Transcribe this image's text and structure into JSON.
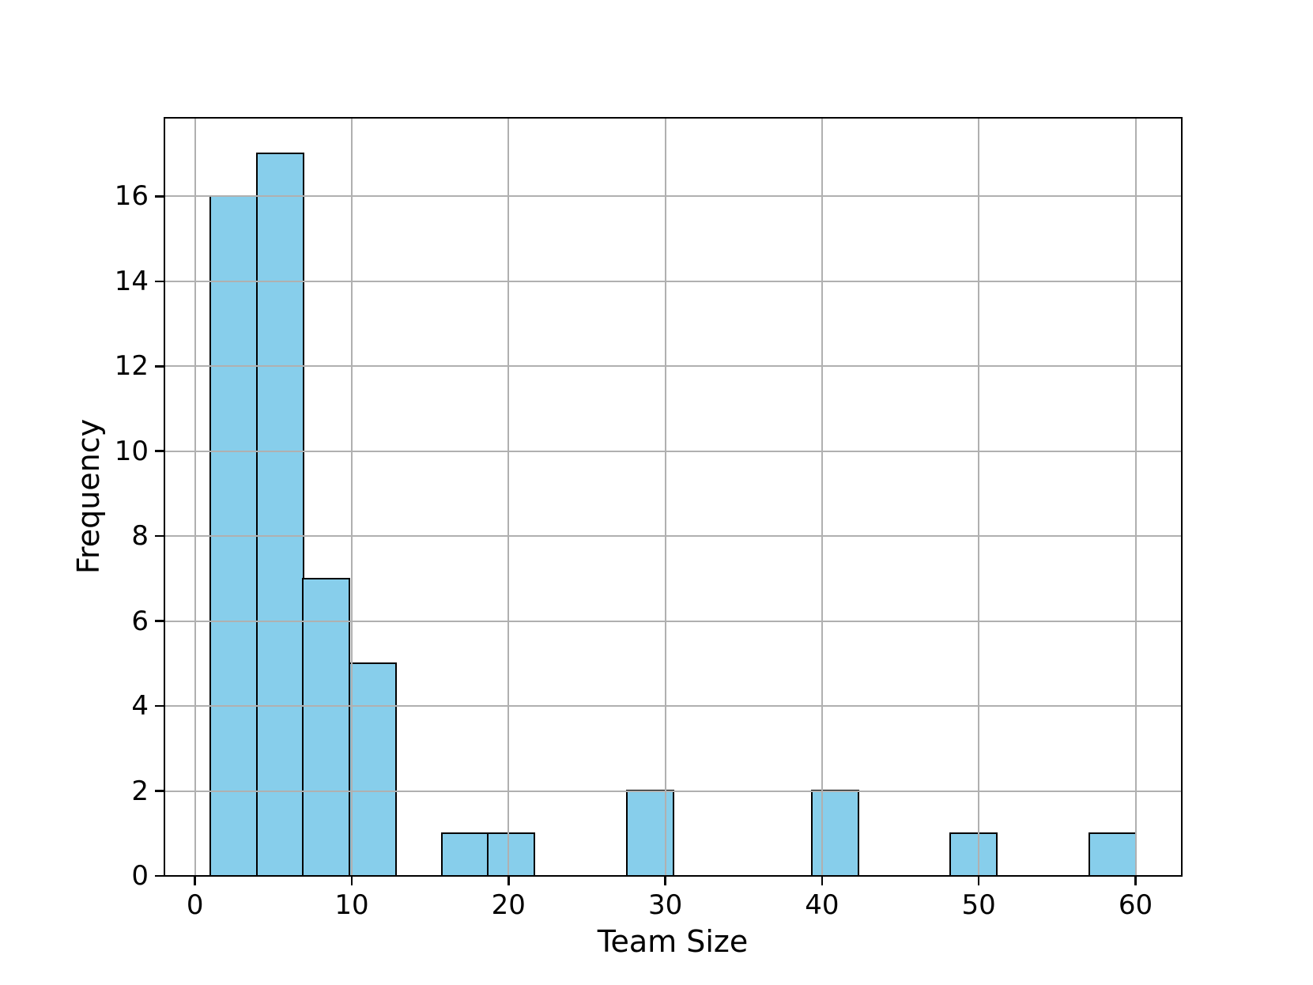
{
  "chart_data": {
    "type": "bar",
    "subtype": "histogram",
    "title": "",
    "xlabel": "Team Size",
    "ylabel": "Frequency",
    "bin_edges": [
      1.0,
      3.95,
      6.9,
      9.85,
      12.8,
      15.75,
      18.7,
      21.65,
      24.6,
      27.55,
      30.5,
      33.45,
      36.4,
      39.35,
      42.3,
      45.25,
      48.2,
      51.15,
      54.1,
      57.05,
      60.0
    ],
    "frequencies": [
      16,
      17,
      7,
      5,
      0,
      1,
      1,
      0,
      0,
      2,
      0,
      0,
      0,
      2,
      0,
      0,
      1,
      0,
      0,
      1
    ],
    "x_ticks": [
      "0",
      "10",
      "20",
      "30",
      "40",
      "50",
      "60"
    ],
    "x_tick_values": [
      0,
      10,
      20,
      30,
      40,
      50,
      60
    ],
    "y_ticks": [
      "0",
      "2",
      "4",
      "6",
      "8",
      "10",
      "12",
      "14",
      "16"
    ],
    "y_tick_values": [
      0,
      2,
      4,
      6,
      8,
      10,
      12,
      14,
      16
    ],
    "xlim": [
      -1.95,
      62.95
    ],
    "ylim": [
      0,
      17.85
    ],
    "grid": true,
    "legend_position": "none",
    "colors": {
      "bar_fill": "#87CEEB",
      "bar_edge": "#000000",
      "grid": "#b0b0b0",
      "spine": "#000000",
      "background": "#ffffff",
      "text": "#000000"
    }
  }
}
